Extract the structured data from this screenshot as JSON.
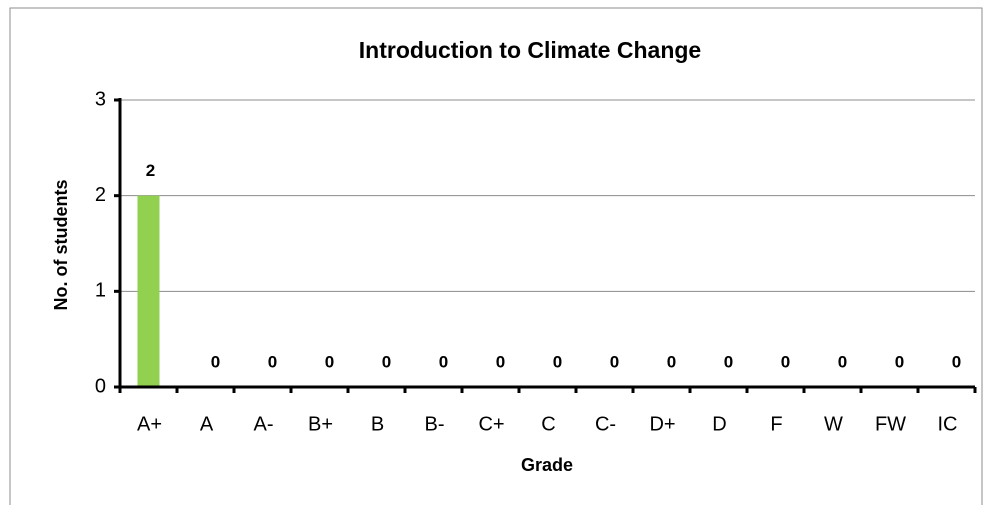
{
  "chart_data": {
    "type": "bar",
    "title": "Introduction to Climate Change",
    "xlabel": "Grade",
    "ylabel": "No. of students",
    "categories": [
      "A+",
      "A",
      "A-",
      "B+",
      "B",
      "B-",
      "C+",
      "C",
      "C-",
      "D+",
      "D",
      "F",
      "W",
      "FW",
      "IC"
    ],
    "values": [
      2,
      0,
      0,
      0,
      0,
      0,
      0,
      0,
      0,
      0,
      0,
      0,
      0,
      0,
      0
    ],
    "color": "#92d050",
    "ylim": [
      0,
      3
    ],
    "yticks": [
      0,
      1,
      2,
      3
    ],
    "grid": true
  }
}
